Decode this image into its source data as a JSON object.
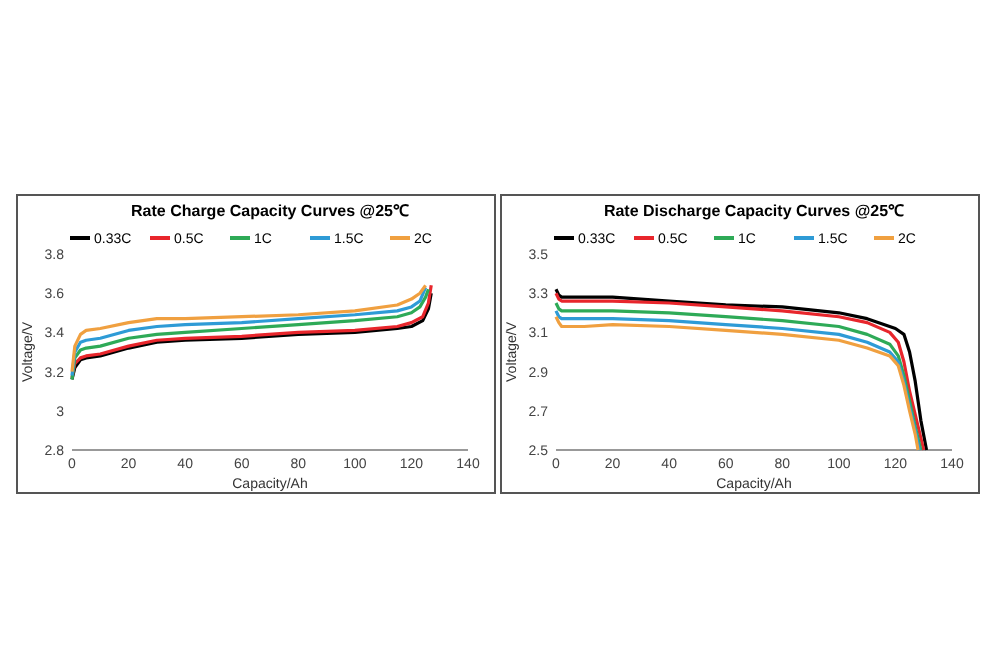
{
  "chart_data": [
    {
      "type": "line",
      "title": "Rate Charge Capacity Curves @25℃",
      "xlabel": "Capacity/Ah",
      "ylabel": "Voltage/V",
      "xlim": [
        0,
        140
      ],
      "xticks": [
        0,
        20,
        40,
        60,
        80,
        100,
        120,
        140
      ],
      "ylim": [
        2.8,
        3.8
      ],
      "yticks": [
        2.8,
        3,
        3.2,
        3.4,
        3.6,
        3.8
      ],
      "legend": "top",
      "grid": false,
      "marker": "none",
      "line_style": "solid",
      "series": [
        {
          "name": "0.33C",
          "color": "#000000",
          "x": [
            0,
            1,
            3,
            5,
            10,
            20,
            30,
            40,
            60,
            80,
            100,
            115,
            120,
            124,
            126,
            127
          ],
          "values": [
            3.16,
            3.22,
            3.26,
            3.27,
            3.28,
            3.32,
            3.35,
            3.36,
            3.37,
            3.39,
            3.4,
            3.42,
            3.43,
            3.46,
            3.52,
            3.6
          ]
        },
        {
          "name": "0.5C",
          "color": "#e8262c",
          "x": [
            0,
            1,
            3,
            5,
            10,
            20,
            30,
            40,
            60,
            80,
            100,
            115,
            120,
            124,
            126,
            127
          ],
          "values": [
            3.17,
            3.24,
            3.27,
            3.28,
            3.29,
            3.33,
            3.36,
            3.37,
            3.38,
            3.4,
            3.41,
            3.43,
            3.45,
            3.48,
            3.55,
            3.64
          ]
        },
        {
          "name": "1C",
          "color": "#2eaa57",
          "x": [
            0,
            1,
            3,
            5,
            10,
            20,
            30,
            40,
            60,
            80,
            100,
            115,
            120,
            123,
            125,
            126
          ],
          "values": [
            3.16,
            3.27,
            3.31,
            3.32,
            3.33,
            3.37,
            3.39,
            3.4,
            3.42,
            3.44,
            3.46,
            3.48,
            3.5,
            3.53,
            3.58,
            3.62
          ]
        },
        {
          "name": "1.5C",
          "color": "#2e9bd6",
          "x": [
            0,
            1,
            3,
            5,
            10,
            20,
            30,
            40,
            60,
            80,
            100,
            115,
            120,
            123,
            125
          ],
          "values": [
            3.18,
            3.3,
            3.35,
            3.36,
            3.37,
            3.41,
            3.43,
            3.44,
            3.45,
            3.47,
            3.49,
            3.51,
            3.53,
            3.56,
            3.63
          ]
        },
        {
          "name": "2C",
          "color": "#f0a040",
          "x": [
            0,
            1,
            3,
            5,
            10,
            20,
            30,
            40,
            60,
            80,
            100,
            115,
            120,
            123,
            125
          ],
          "values": [
            3.2,
            3.33,
            3.39,
            3.41,
            3.42,
            3.45,
            3.47,
            3.47,
            3.48,
            3.49,
            3.51,
            3.54,
            3.57,
            3.6,
            3.64
          ]
        }
      ]
    },
    {
      "type": "line",
      "title": "Rate Discharge Capacity Curves @25℃",
      "xlabel": "Capacity/Ah",
      "ylabel": "Voltage/V",
      "xlim": [
        0,
        140
      ],
      "xticks": [
        0,
        20,
        40,
        60,
        80,
        100,
        120,
        140
      ],
      "ylim": [
        2.5,
        3.5
      ],
      "yticks": [
        2.5,
        2.7,
        2.9,
        3.1,
        3.3,
        3.5
      ],
      "legend": "top",
      "grid": false,
      "marker": "none",
      "line_style": "solid",
      "series": [
        {
          "name": "0.33C",
          "color": "#000000",
          "x": [
            0,
            1,
            2,
            10,
            20,
            40,
            60,
            80,
            100,
            110,
            120,
            123,
            125,
            127,
            129,
            131
          ],
          "values": [
            3.32,
            3.29,
            3.28,
            3.28,
            3.28,
            3.26,
            3.24,
            3.23,
            3.2,
            3.17,
            3.12,
            3.09,
            3.0,
            2.85,
            2.65,
            2.5
          ]
        },
        {
          "name": "0.5C",
          "color": "#e8262c",
          "x": [
            0,
            1,
            2,
            10,
            20,
            40,
            60,
            80,
            100,
            110,
            118,
            121,
            123,
            125,
            127,
            130
          ],
          "values": [
            3.3,
            3.27,
            3.26,
            3.26,
            3.26,
            3.25,
            3.23,
            3.21,
            3.18,
            3.15,
            3.1,
            3.05,
            2.95,
            2.8,
            2.68,
            2.5
          ]
        },
        {
          "name": "1C",
          "color": "#2eaa57",
          "x": [
            0,
            1,
            2,
            10,
            20,
            40,
            60,
            80,
            100,
            110,
            118,
            121,
            123,
            125,
            127,
            129
          ],
          "values": [
            3.25,
            3.22,
            3.21,
            3.21,
            3.21,
            3.2,
            3.18,
            3.16,
            3.13,
            3.09,
            3.04,
            2.98,
            2.88,
            2.75,
            2.62,
            2.5
          ]
        },
        {
          "name": "1.5C",
          "color": "#2e9bd6",
          "x": [
            0,
            1,
            2,
            10,
            20,
            40,
            60,
            80,
            100,
            110,
            118,
            121,
            123,
            125,
            127,
            128.5
          ],
          "values": [
            3.21,
            3.18,
            3.17,
            3.17,
            3.17,
            3.16,
            3.14,
            3.12,
            3.09,
            3.05,
            3.0,
            2.95,
            2.85,
            2.72,
            2.6,
            2.5
          ]
        },
        {
          "name": "2C",
          "color": "#f0a040",
          "x": [
            0,
            1,
            2,
            10,
            20,
            40,
            60,
            80,
            100,
            110,
            118,
            121,
            123,
            125,
            127,
            128
          ],
          "values": [
            3.18,
            3.15,
            3.13,
            3.13,
            3.14,
            3.13,
            3.11,
            3.09,
            3.06,
            3.02,
            2.98,
            2.93,
            2.83,
            2.7,
            2.58,
            2.5
          ]
        }
      ]
    }
  ]
}
